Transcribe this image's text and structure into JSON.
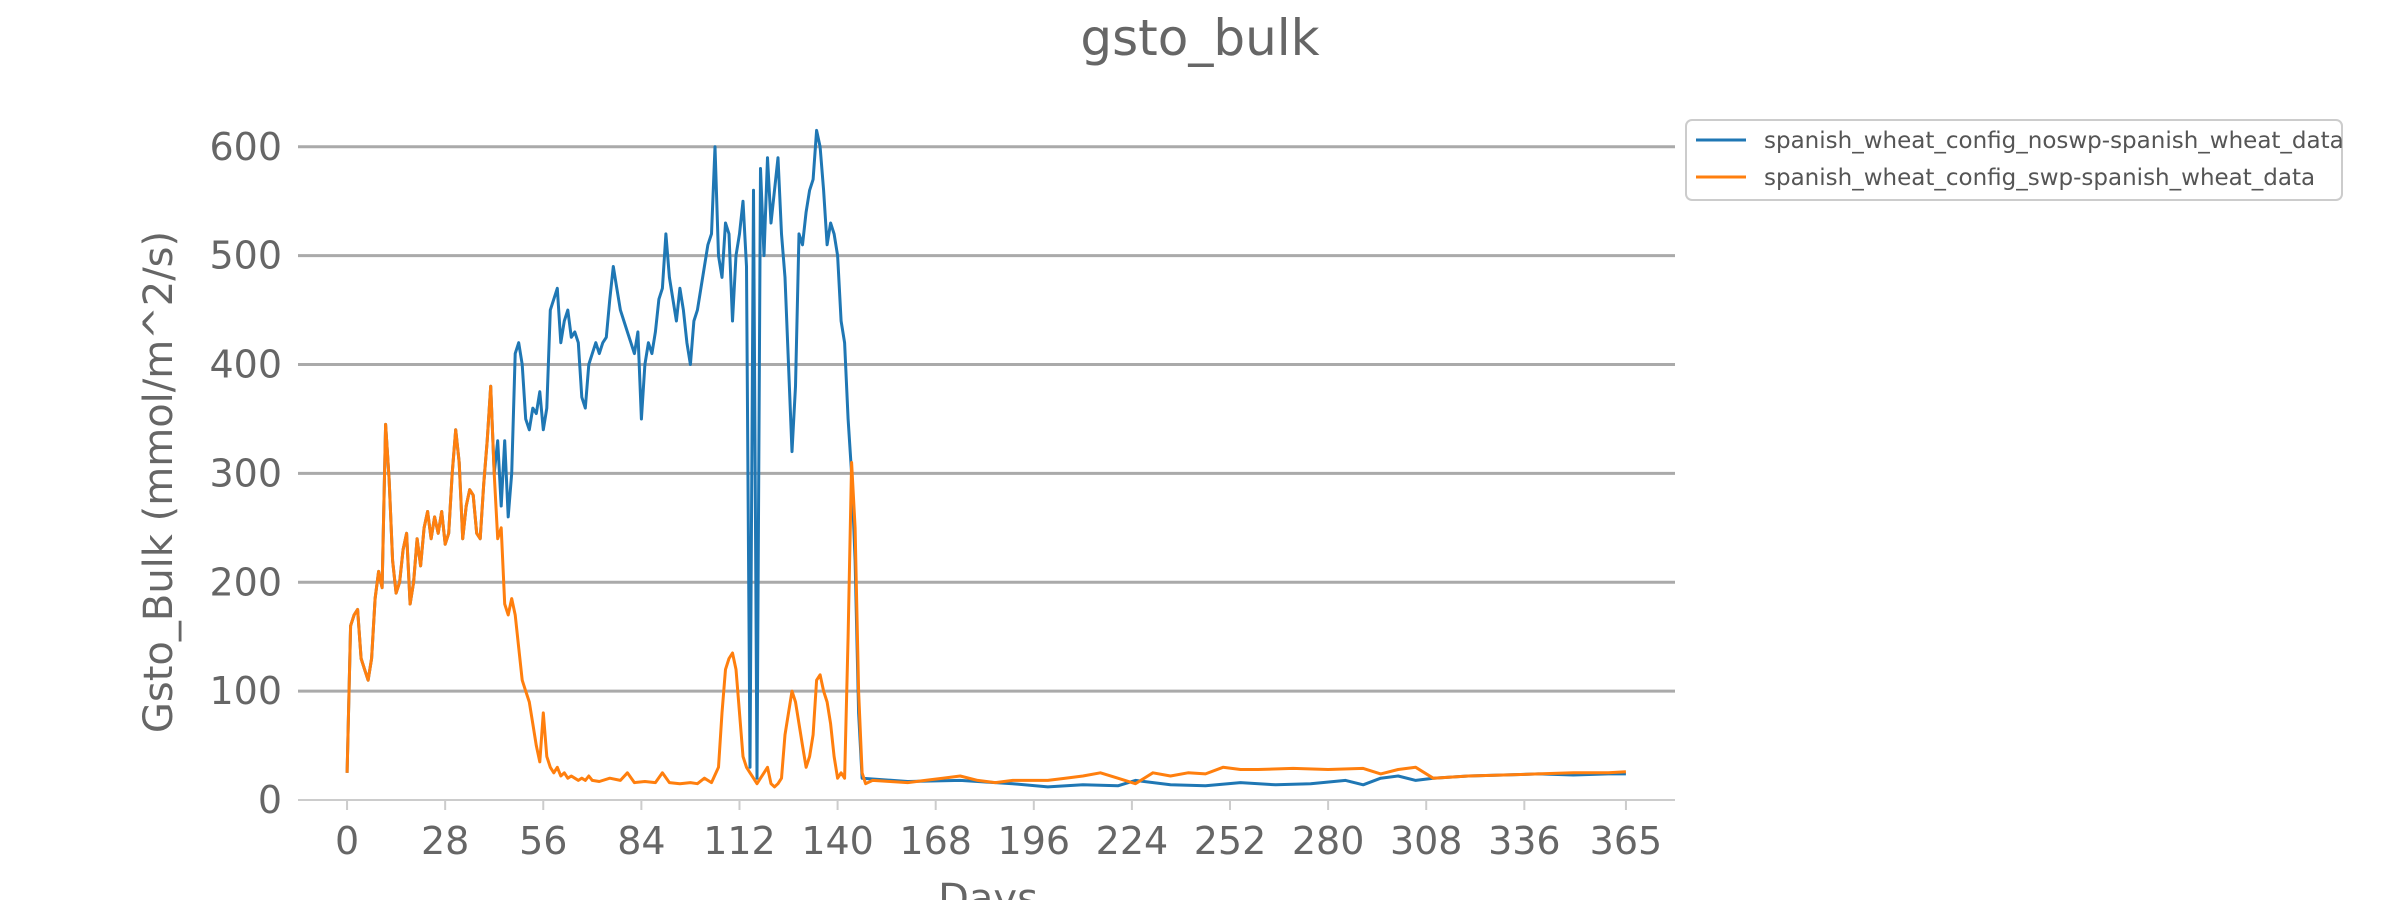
{
  "chart_data": {
    "type": "line",
    "title": "gsto_bulk",
    "xlabel": "Days",
    "ylabel": "Gsto_Bulk (mmol/m^2/s)",
    "xlim": [
      -14,
      379
    ],
    "ylim": [
      0,
      620
    ],
    "xticks": [
      0,
      28,
      56,
      84,
      112,
      140,
      168,
      196,
      224,
      252,
      280,
      308,
      336,
      365
    ],
    "yticks": [
      0,
      100,
      200,
      300,
      400,
      500,
      600
    ],
    "grid": "horizontal",
    "legend_position": "outside-top-right",
    "series": [
      {
        "name": "spanish_wheat_config_noswp-spanish_wheat_data",
        "color": "#1f77b4",
        "points": [
          [
            0,
            25
          ],
          [
            1,
            160
          ],
          [
            2,
            170
          ],
          [
            3,
            175
          ],
          [
            4,
            130
          ],
          [
            5,
            120
          ],
          [
            6,
            110
          ],
          [
            7,
            130
          ],
          [
            8,
            185
          ],
          [
            9,
            210
          ],
          [
            10,
            195
          ],
          [
            11,
            345
          ],
          [
            12,
            295
          ],
          [
            13,
            220
          ],
          [
            14,
            190
          ],
          [
            15,
            200
          ],
          [
            16,
            230
          ],
          [
            17,
            245
          ],
          [
            18,
            180
          ],
          [
            19,
            200
          ],
          [
            20,
            240
          ],
          [
            21,
            215
          ],
          [
            22,
            250
          ],
          [
            23,
            265
          ],
          [
            24,
            240
          ],
          [
            25,
            260
          ],
          [
            26,
            245
          ],
          [
            27,
            265
          ],
          [
            28,
            235
          ],
          [
            29,
            245
          ],
          [
            30,
            300
          ],
          [
            31,
            340
          ],
          [
            32,
            310
          ],
          [
            33,
            240
          ],
          [
            34,
            270
          ],
          [
            35,
            285
          ],
          [
            36,
            280
          ],
          [
            37,
            245
          ],
          [
            38,
            240
          ],
          [
            39,
            290
          ],
          [
            40,
            330
          ],
          [
            41,
            380
          ],
          [
            42,
            300
          ],
          [
            43,
            330
          ],
          [
            44,
            270
          ],
          [
            45,
            330
          ],
          [
            46,
            260
          ],
          [
            47,
            300
          ],
          [
            48,
            410
          ],
          [
            49,
            420
          ],
          [
            50,
            400
          ],
          [
            51,
            350
          ],
          [
            52,
            340
          ],
          [
            53,
            360
          ],
          [
            54,
            355
          ],
          [
            55,
            375
          ],
          [
            56,
            340
          ],
          [
            57,
            360
          ],
          [
            58,
            450
          ],
          [
            59,
            460
          ],
          [
            60,
            470
          ],
          [
            61,
            420
          ],
          [
            62,
            440
          ],
          [
            63,
            450
          ],
          [
            64,
            425
          ],
          [
            65,
            430
          ],
          [
            66,
            420
          ],
          [
            67,
            370
          ],
          [
            68,
            360
          ],
          [
            69,
            400
          ],
          [
            70,
            410
          ],
          [
            71,
            420
          ],
          [
            72,
            410
          ],
          [
            73,
            420
          ],
          [
            74,
            425
          ],
          [
            75,
            460
          ],
          [
            76,
            490
          ],
          [
            77,
            470
          ],
          [
            78,
            450
          ],
          [
            79,
            440
          ],
          [
            80,
            430
          ],
          [
            81,
            420
          ],
          [
            82,
            410
          ],
          [
            83,
            430
          ],
          [
            84,
            350
          ],
          [
            85,
            400
          ],
          [
            86,
            420
          ],
          [
            87,
            410
          ],
          [
            88,
            430
          ],
          [
            89,
            460
          ],
          [
            90,
            470
          ],
          [
            91,
            520
          ],
          [
            92,
            480
          ],
          [
            93,
            460
          ],
          [
            94,
            440
          ],
          [
            95,
            470
          ],
          [
            96,
            450
          ],
          [
            97,
            420
          ],
          [
            98,
            400
          ],
          [
            99,
            440
          ],
          [
            100,
            450
          ],
          [
            101,
            470
          ],
          [
            102,
            490
          ],
          [
            103,
            510
          ],
          [
            104,
            520
          ],
          [
            105,
            600
          ],
          [
            106,
            500
          ],
          [
            107,
            480
          ],
          [
            108,
            530
          ],
          [
            109,
            520
          ],
          [
            110,
            440
          ],
          [
            111,
            500
          ],
          [
            112,
            520
          ],
          [
            113,
            550
          ],
          [
            114,
            490
          ],
          [
            115,
            30
          ],
          [
            116,
            560
          ],
          [
            117,
            20
          ],
          [
            118,
            580
          ],
          [
            119,
            500
          ],
          [
            120,
            590
          ],
          [
            121,
            530
          ],
          [
            122,
            560
          ],
          [
            123,
            590
          ],
          [
            124,
            520
          ],
          [
            125,
            480
          ],
          [
            126,
            400
          ],
          [
            127,
            320
          ],
          [
            128,
            380
          ],
          [
            129,
            520
          ],
          [
            130,
            510
          ],
          [
            131,
            540
          ],
          [
            132,
            560
          ],
          [
            133,
            570
          ],
          [
            134,
            615
          ],
          [
            135,
            600
          ],
          [
            136,
            560
          ],
          [
            137,
            510
          ],
          [
            138,
            530
          ],
          [
            139,
            520
          ],
          [
            140,
            500
          ],
          [
            141,
            440
          ],
          [
            142,
            420
          ],
          [
            143,
            350
          ],
          [
            144,
            300
          ],
          [
            145,
            220
          ],
          [
            146,
            80
          ],
          [
            147,
            20
          ],
          [
            160,
            17
          ],
          [
            175,
            18
          ],
          [
            190,
            15
          ],
          [
            200,
            12
          ],
          [
            210,
            14
          ],
          [
            220,
            13
          ],
          [
            225,
            18
          ],
          [
            235,
            14
          ],
          [
            245,
            13
          ],
          [
            255,
            16
          ],
          [
            265,
            14
          ],
          [
            275,
            15
          ],
          [
            285,
            18
          ],
          [
            290,
            14
          ],
          [
            295,
            20
          ],
          [
            300,
            22
          ],
          [
            305,
            18
          ],
          [
            310,
            20
          ],
          [
            320,
            22
          ],
          [
            330,
            23
          ],
          [
            340,
            24
          ],
          [
            350,
            23
          ],
          [
            360,
            24
          ],
          [
            365,
            24
          ]
        ]
      },
      {
        "name": "spanish_wheat_config_swp-spanish_wheat_data",
        "color": "#ff7f0e",
        "points": [
          [
            0,
            25
          ],
          [
            1,
            160
          ],
          [
            2,
            170
          ],
          [
            3,
            175
          ],
          [
            4,
            130
          ],
          [
            5,
            120
          ],
          [
            6,
            110
          ],
          [
            7,
            130
          ],
          [
            8,
            185
          ],
          [
            9,
            210
          ],
          [
            10,
            195
          ],
          [
            11,
            345
          ],
          [
            12,
            295
          ],
          [
            13,
            220
          ],
          [
            14,
            190
          ],
          [
            15,
            200
          ],
          [
            16,
            230
          ],
          [
            17,
            245
          ],
          [
            18,
            180
          ],
          [
            19,
            200
          ],
          [
            20,
            240
          ],
          [
            21,
            215
          ],
          [
            22,
            250
          ],
          [
            23,
            265
          ],
          [
            24,
            240
          ],
          [
            25,
            260
          ],
          [
            26,
            245
          ],
          [
            27,
            265
          ],
          [
            28,
            235
          ],
          [
            29,
            245
          ],
          [
            30,
            300
          ],
          [
            31,
            340
          ],
          [
            32,
            310
          ],
          [
            33,
            240
          ],
          [
            34,
            270
          ],
          [
            35,
            285
          ],
          [
            36,
            280
          ],
          [
            37,
            245
          ],
          [
            38,
            240
          ],
          [
            39,
            290
          ],
          [
            40,
            330
          ],
          [
            41,
            380
          ],
          [
            42,
            300
          ],
          [
            43,
            240
          ],
          [
            44,
            250
          ],
          [
            45,
            180
          ],
          [
            46,
            170
          ],
          [
            47,
            185
          ],
          [
            48,
            170
          ],
          [
            49,
            140
          ],
          [
            50,
            110
          ],
          [
            51,
            100
          ],
          [
            52,
            90
          ],
          [
            53,
            70
          ],
          [
            54,
            50
          ],
          [
            55,
            35
          ],
          [
            56,
            80
          ],
          [
            57,
            40
          ],
          [
            58,
            30
          ],
          [
            59,
            25
          ],
          [
            60,
            30
          ],
          [
            61,
            22
          ],
          [
            62,
            25
          ],
          [
            63,
            20
          ],
          [
            64,
            22
          ],
          [
            65,
            20
          ],
          [
            66,
            18
          ],
          [
            67,
            20
          ],
          [
            68,
            18
          ],
          [
            69,
            22
          ],
          [
            70,
            18
          ],
          [
            72,
            17
          ],
          [
            75,
            20
          ],
          [
            78,
            18
          ],
          [
            80,
            25
          ],
          [
            82,
            16
          ],
          [
            85,
            17
          ],
          [
            88,
            16
          ],
          [
            90,
            25
          ],
          [
            92,
            16
          ],
          [
            95,
            15
          ],
          [
            98,
            16
          ],
          [
            100,
            15
          ],
          [
            102,
            20
          ],
          [
            104,
            16
          ],
          [
            106,
            30
          ],
          [
            107,
            80
          ],
          [
            108,
            120
          ],
          [
            109,
            130
          ],
          [
            110,
            135
          ],
          [
            111,
            120
          ],
          [
            112,
            80
          ],
          [
            113,
            40
          ],
          [
            114,
            30
          ],
          [
            115,
            25
          ],
          [
            116,
            20
          ],
          [
            117,
            15
          ],
          [
            118,
            20
          ],
          [
            119,
            25
          ],
          [
            120,
            30
          ],
          [
            121,
            15
          ],
          [
            122,
            12
          ],
          [
            123,
            15
          ],
          [
            124,
            20
          ],
          [
            125,
            60
          ],
          [
            126,
            80
          ],
          [
            127,
            100
          ],
          [
            128,
            90
          ],
          [
            129,
            70
          ],
          [
            130,
            50
          ],
          [
            131,
            30
          ],
          [
            132,
            40
          ],
          [
            133,
            60
          ],
          [
            134,
            110
          ],
          [
            135,
            115
          ],
          [
            136,
            100
          ],
          [
            137,
            90
          ],
          [
            138,
            70
          ],
          [
            139,
            40
          ],
          [
            140,
            20
          ],
          [
            141,
            25
          ],
          [
            142,
            20
          ],
          [
            143,
            150
          ],
          [
            144,
            310
          ],
          [
            145,
            250
          ],
          [
            146,
            100
          ],
          [
            147,
            25
          ],
          [
            148,
            15
          ],
          [
            150,
            18
          ],
          [
            155,
            17
          ],
          [
            160,
            16
          ],
          [
            165,
            18
          ],
          [
            170,
            20
          ],
          [
            175,
            22
          ],
          [
            180,
            18
          ],
          [
            185,
            16
          ],
          [
            190,
            18
          ],
          [
            200,
            18
          ],
          [
            205,
            20
          ],
          [
            210,
            22
          ],
          [
            215,
            25
          ],
          [
            220,
            20
          ],
          [
            225,
            15
          ],
          [
            230,
            25
          ],
          [
            235,
            22
          ],
          [
            240,
            25
          ],
          [
            245,
            24
          ],
          [
            250,
            30
          ],
          [
            255,
            28
          ],
          [
            260,
            28
          ],
          [
            270,
            29
          ],
          [
            280,
            28
          ],
          [
            290,
            29
          ],
          [
            295,
            24
          ],
          [
            300,
            28
          ],
          [
            305,
            30
          ],
          [
            310,
            20
          ],
          [
            320,
            22
          ],
          [
            330,
            23
          ],
          [
            340,
            24
          ],
          [
            350,
            25
          ],
          [
            360,
            25
          ],
          [
            365,
            26
          ]
        ]
      }
    ]
  }
}
